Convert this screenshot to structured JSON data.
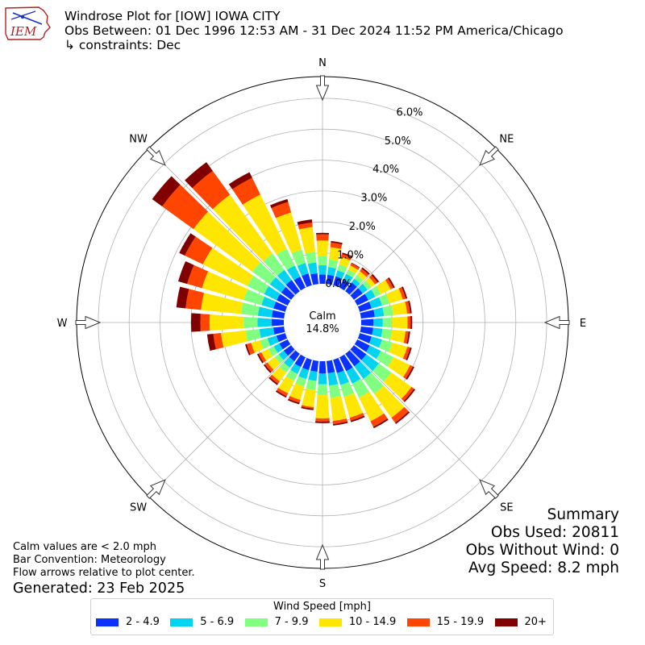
{
  "header": {
    "title": "Windrose Plot for [IOW] IOWA CITY",
    "obs_between": "Obs Between: 01 Dec 1996 12:53 AM - 31 Dec 2024 11:52 PM America/Chicago",
    "constraints": "↳ constraints: Dec"
  },
  "logo": {
    "text": "IEM"
  },
  "summary": {
    "heading": "Summary",
    "obs_used": "Obs Used: 20811",
    "obs_without_wind": "Obs Without Wind: 0",
    "avg_speed": "Avg Speed: 8.2 mph"
  },
  "notes": {
    "calm": "Calm values are < 2.0 mph",
    "convention": "Bar Convention: Meteorology",
    "flow": "Flow arrows relative to plot center.",
    "generated": "Generated: 23 Feb 2025"
  },
  "chart_data": {
    "type": "windrose",
    "calm_label": "Calm",
    "calm_value": "14.8%",
    "radial_ticks": [
      "0.0%",
      "1.0%",
      "2.0%",
      "3.0%",
      "4.0%",
      "5.0%",
      "6.0%"
    ],
    "radial_max": 6.7,
    "cardinal_labels": [
      "N",
      "NE",
      "E",
      "SE",
      "S",
      "SW",
      "W",
      "NW"
    ],
    "legend_title": "Wind Speed [mph]",
    "bins": [
      {
        "label": "2 - 4.9",
        "color": "#0a32ff"
      },
      {
        "label": "5 - 6.9",
        "color": "#00d4f0"
      },
      {
        "label": "7 - 9.9",
        "color": "#80ff80"
      },
      {
        "label": "10 - 14.9",
        "color": "#ffe600"
      },
      {
        "label": "15 - 19.9",
        "color": "#ff4500"
      },
      {
        "label": "20+",
        "color": "#800000"
      }
    ],
    "directions": [
      "0",
      "10",
      "20",
      "30",
      "40",
      "50",
      "60",
      "70",
      "80",
      "90",
      "100",
      "110",
      "120",
      "130",
      "140",
      "150",
      "160",
      "170",
      "180",
      "190",
      "200",
      "210",
      "220",
      "230",
      "240",
      "250",
      "260",
      "270",
      "280",
      "290",
      "300",
      "310",
      "320",
      "330",
      "340",
      "350"
    ],
    "cumulative": [
      [
        0.3,
        0.6,
        0.9,
        1.4,
        1.6,
        1.65
      ],
      [
        0.3,
        0.55,
        0.8,
        1.2,
        1.35,
        1.4
      ],
      [
        0.3,
        0.5,
        0.7,
        0.95,
        1.05,
        1.1
      ],
      [
        0.3,
        0.5,
        0.65,
        0.8,
        0.88,
        0.9
      ],
      [
        0.35,
        0.5,
        0.65,
        0.8,
        0.9,
        0.95
      ],
      [
        0.35,
        0.55,
        0.7,
        0.85,
        0.95,
        1.0
      ],
      [
        0.4,
        0.65,
        0.85,
        1.2,
        1.3,
        1.35
      ],
      [
        0.4,
        0.75,
        1.0,
        1.45,
        1.55,
        1.6
      ],
      [
        0.45,
        0.75,
        1.05,
        1.5,
        1.6,
        1.65
      ],
      [
        0.4,
        0.7,
        1.0,
        1.5,
        1.6,
        1.65
      ],
      [
        0.4,
        0.7,
        1.0,
        1.45,
        1.55,
        1.6
      ],
      [
        0.4,
        0.75,
        1.1,
        1.6,
        1.7,
        1.75
      ],
      [
        0.45,
        0.85,
        1.3,
        1.9,
        2.0,
        2.05
      ],
      [
        0.5,
        1.0,
        1.5,
        2.3,
        2.4,
        2.45
      ],
      [
        0.5,
        1.0,
        1.6,
        2.55,
        2.75,
        2.8
      ],
      [
        0.5,
        0.95,
        1.45,
        2.3,
        2.5,
        2.55
      ],
      [
        0.45,
        0.85,
        1.25,
        1.95,
        2.05,
        2.1
      ],
      [
        0.4,
        0.8,
        1.2,
        1.95,
        2.05,
        2.1
      ],
      [
        0.4,
        0.75,
        1.1,
        1.85,
        1.95,
        2.0
      ],
      [
        0.35,
        0.65,
        0.95,
        1.5,
        1.55,
        1.6
      ],
      [
        0.35,
        0.65,
        0.9,
        1.35,
        1.45,
        1.5
      ],
      [
        0.35,
        0.6,
        0.85,
        1.3,
        1.4,
        1.45
      ],
      [
        0.3,
        0.55,
        0.75,
        1.1,
        1.2,
        1.25
      ],
      [
        0.3,
        0.5,
        0.65,
        0.95,
        1.05,
        1.1
      ],
      [
        0.3,
        0.5,
        0.7,
        0.95,
        1.05,
        1.1
      ],
      [
        0.3,
        0.6,
        0.85,
        1.15,
        1.3,
        1.35
      ],
      [
        0.35,
        0.8,
        1.25,
        2.05,
        2.3,
        2.5
      ],
      [
        0.4,
        0.85,
        1.3,
        2.4,
        2.7,
        3.0
      ],
      [
        0.4,
        0.85,
        1.4,
        2.7,
        3.2,
        3.5
      ],
      [
        0.4,
        0.8,
        1.4,
        2.8,
        3.3,
        3.6
      ],
      [
        0.4,
        0.85,
        1.45,
        3.05,
        3.7,
        3.9
      ],
      [
        0.4,
        0.85,
        1.55,
        3.9,
        5.15,
        5.55
      ],
      [
        0.45,
        0.85,
        1.5,
        3.85,
        4.8,
        5.15
      ],
      [
        0.4,
        0.8,
        1.4,
        3.35,
        3.95,
        4.15
      ],
      [
        0.4,
        0.75,
        1.2,
        2.45,
        2.8,
        2.9
      ],
      [
        0.35,
        0.7,
        1.05,
        1.85,
        2.0,
        2.1
      ]
    ]
  }
}
